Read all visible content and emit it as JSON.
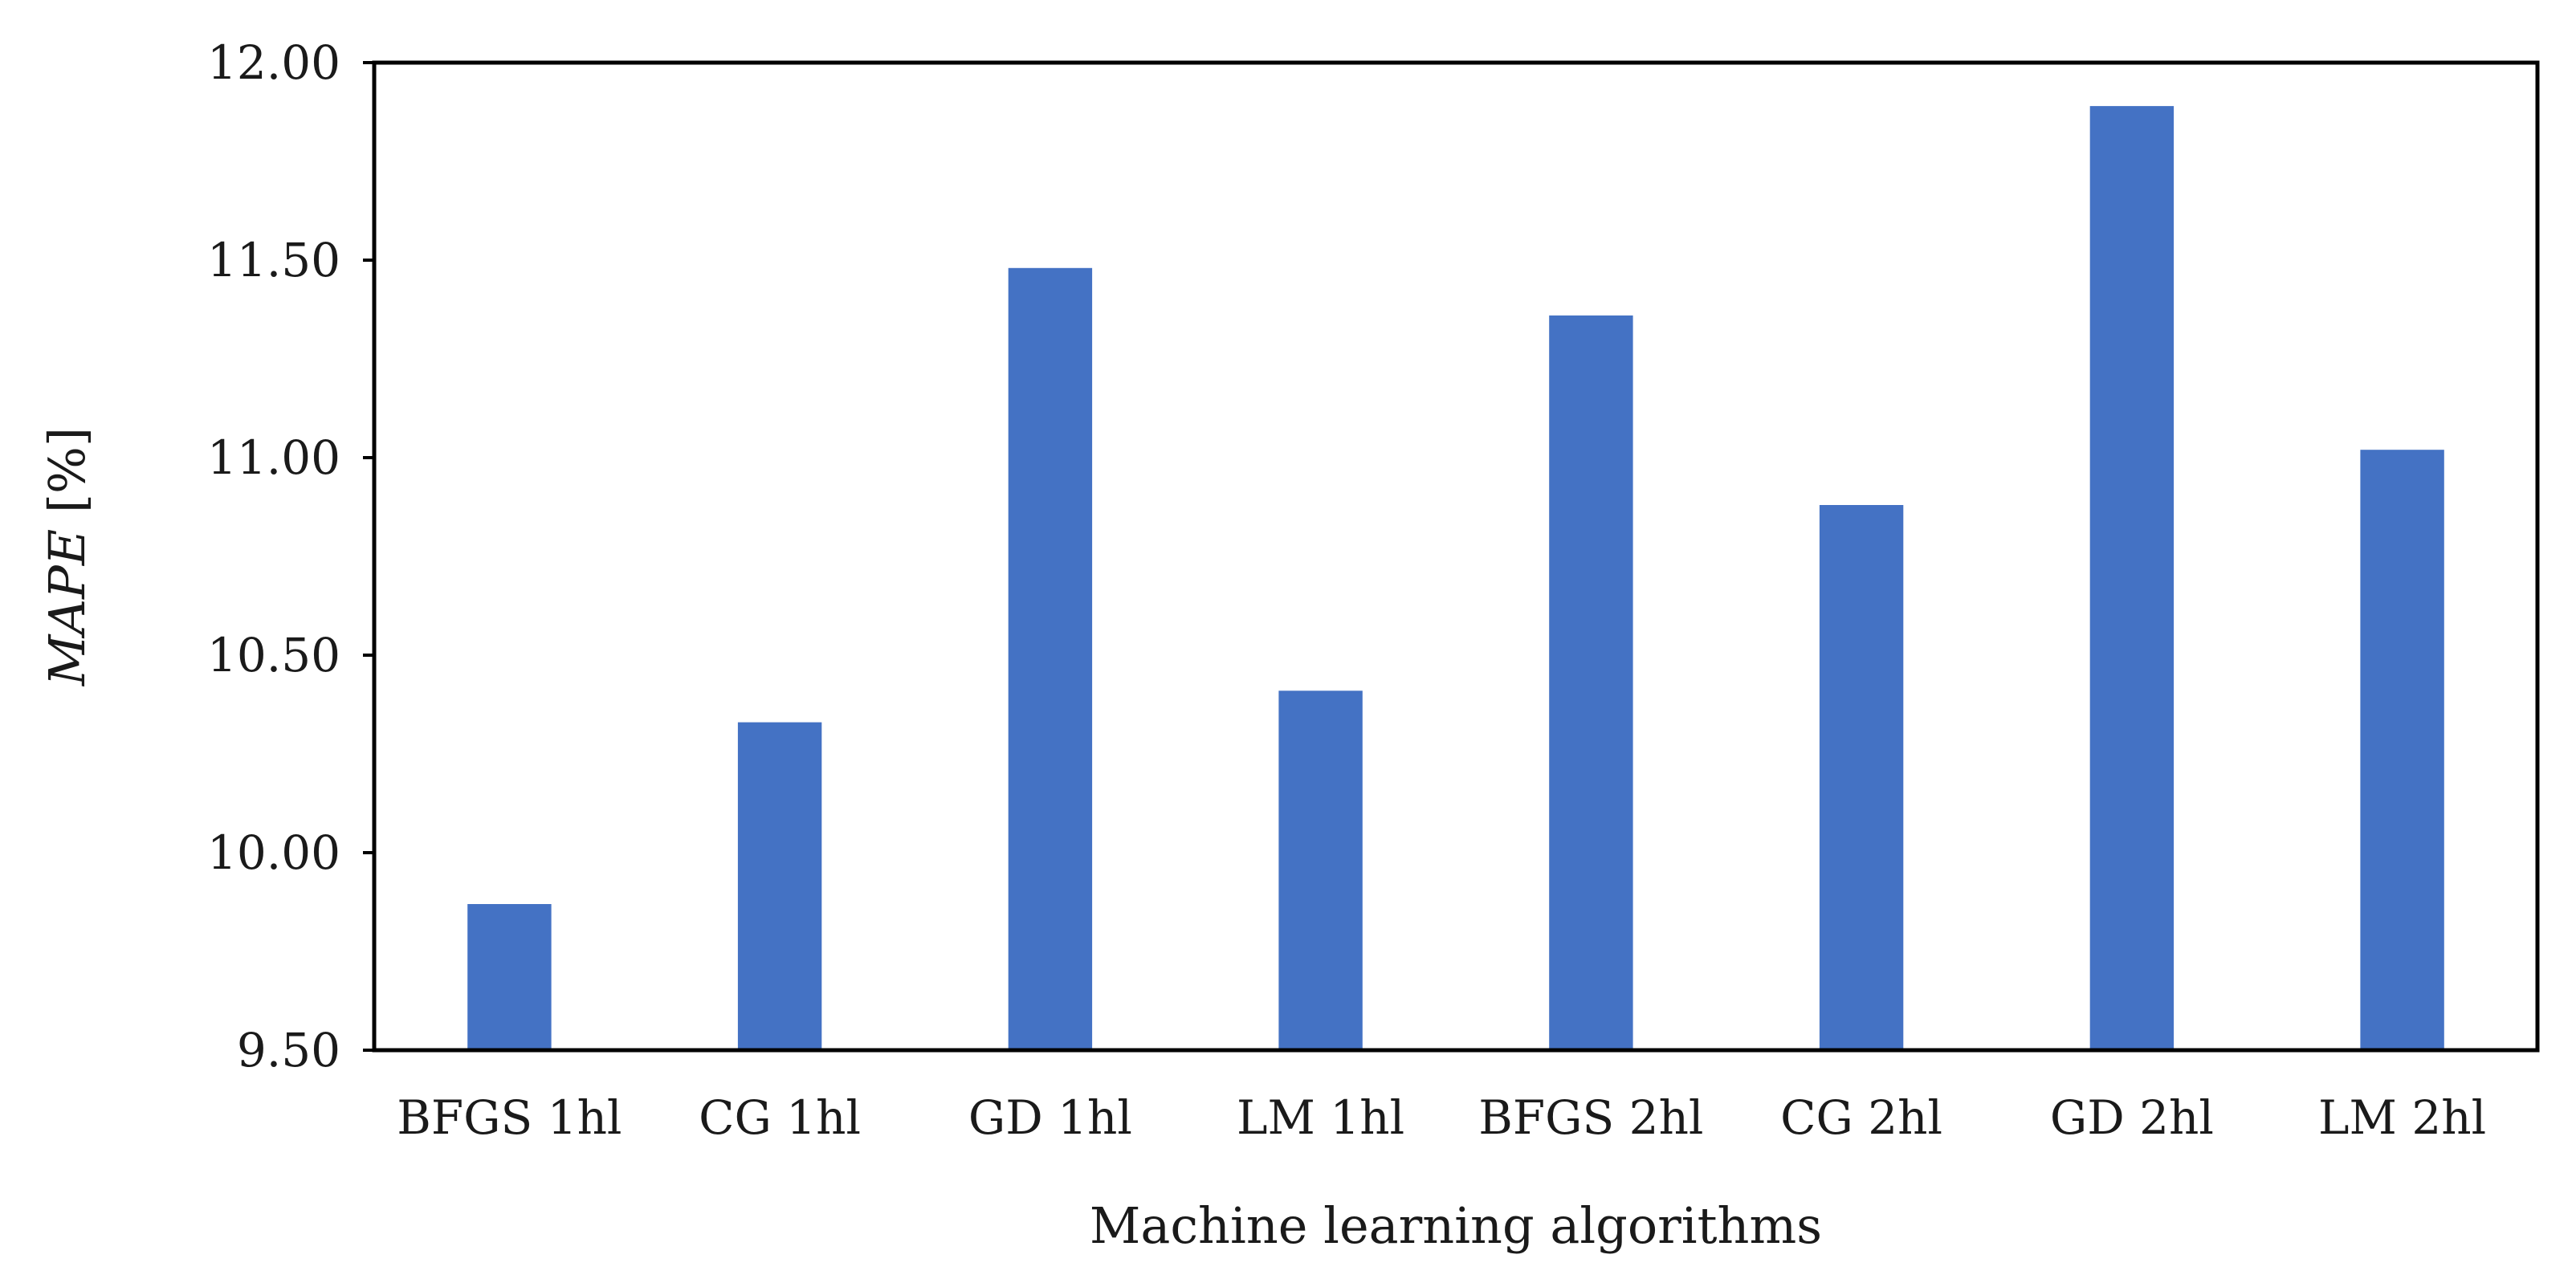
{
  "chart_data": {
    "type": "bar",
    "categories": [
      "BFGS 1hl",
      "CG 1hl",
      "GD 1hl",
      "LM 1hl",
      "BFGS 2hl",
      "CG 2hl",
      "GD 2hl",
      "LM 2hl"
    ],
    "values": [
      9.87,
      10.33,
      11.48,
      10.41,
      11.36,
      10.88,
      11.89,
      11.02
    ],
    "xlabel": "Machine learning algorithms",
    "ylabel_italic": "MAPE",
    "ylabel_unit": " [%]",
    "ylim": [
      9.5,
      12.0
    ],
    "yticks": [
      9.5,
      10.0,
      10.5,
      11.0,
      11.5,
      12.0
    ],
    "ytick_labels": [
      "9.50",
      "10.00",
      "10.50",
      "11.00",
      "11.50",
      "12.00"
    ],
    "bar_color": "#4472c4",
    "grid": false,
    "legend": "none"
  }
}
